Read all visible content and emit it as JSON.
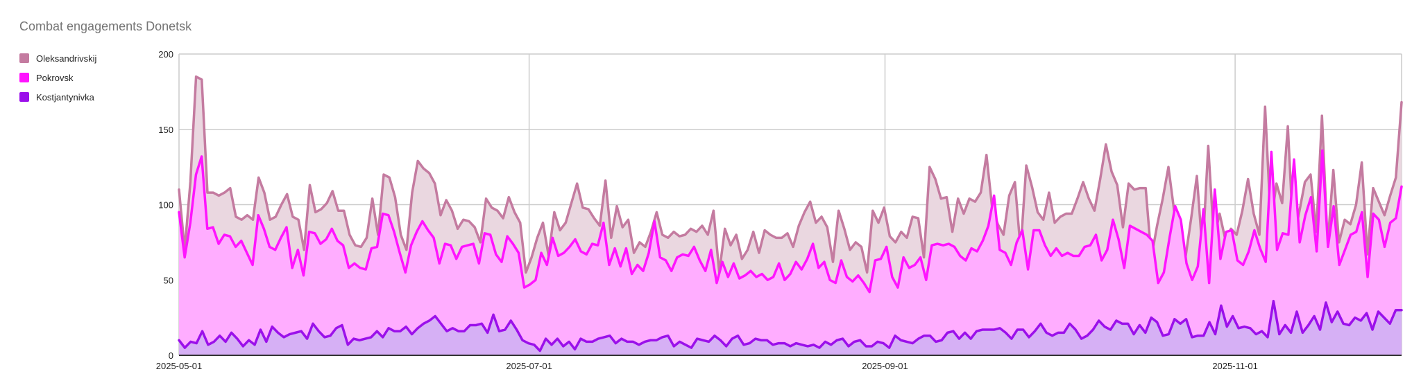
{
  "chart_data": {
    "type": "area",
    "title": "Combat engagements Donetsk",
    "xlabel": "",
    "ylabel": "",
    "x_start": "2025-05-01",
    "x_end": "2025-11-30",
    "ylim": [
      0,
      200
    ],
    "yticks": [
      "0",
      "50",
      "100",
      "150",
      "200"
    ],
    "xticks": [
      {
        "label": "2025-05-01",
        "date": "2025-05-01"
      },
      {
        "label": "2025-07-01",
        "date": "2025-07-01"
      },
      {
        "label": "2025-09-01",
        "date": "2025-09-01"
      },
      {
        "label": "2025-11-01",
        "date": "2025-11-01"
      }
    ],
    "grid": true,
    "legend_position": "left",
    "stacked": false,
    "series": [
      {
        "name": "Oleksandrivskij",
        "color": "#c47ba0",
        "fill": "#ead7e0",
        "values": [
          110,
          70,
          115,
          185,
          183,
          108,
          108,
          106,
          108,
          111,
          92,
          90,
          93,
          90,
          118,
          108,
          90,
          92,
          100,
          107,
          92,
          90,
          70,
          113,
          95,
          97,
          101,
          109,
          96,
          96,
          80,
          73,
          72,
          78,
          104,
          80,
          120,
          118,
          105,
          80,
          70,
          108,
          129,
          124,
          121,
          114,
          93,
          103,
          96,
          84,
          90,
          89,
          85,
          75,
          104,
          98,
          96,
          91,
          105,
          95,
          88,
          55,
          65,
          78,
          88,
          66,
          95,
          83,
          88,
          101,
          114,
          98,
          97,
          91,
          86,
          116,
          78,
          99,
          85,
          90,
          68,
          75,
          72,
          82,
          95,
          80,
          78,
          82,
          79,
          80,
          84,
          82,
          86,
          80,
          96,
          55,
          84,
          73,
          80,
          64,
          70,
          82,
          68,
          83,
          80,
          78,
          78,
          81,
          72,
          86,
          95,
          102,
          88,
          92,
          85,
          62,
          96,
          84,
          70,
          75,
          72,
          55,
          96,
          88,
          98,
          79,
          75,
          82,
          78,
          92,
          91,
          65,
          125,
          117,
          104,
          105,
          82,
          104,
          94,
          104,
          102,
          108,
          133,
          98,
          87,
          80,
          106,
          115,
          70,
          126,
          112,
          95,
          90,
          108,
          88,
          92,
          94,
          94,
          104,
          115,
          104,
          96,
          117,
          140,
          122,
          113,
          85,
          114,
          110,
          111,
          111,
          65,
          86,
          104,
          125,
          96,
          81,
          65,
          91,
          119,
          68,
          139,
          77,
          94,
          77,
          84,
          80,
          96,
          117,
          94,
          80,
          165,
          87,
          114,
          101,
          152,
          76,
          95,
          115,
          120,
          82,
          159,
          74,
          123,
          75,
          90,
          87,
          100,
          128,
          67,
          111,
          102,
          93,
          106,
          118,
          168
        ]
      },
      {
        "name": "Pokrovsk",
        "color": "#ff14ff",
        "fill": "#ffadff",
        "values": [
          95,
          65,
          88,
          120,
          132,
          84,
          85,
          74,
          80,
          79,
          72,
          76,
          68,
          60,
          93,
          84,
          72,
          70,
          78,
          85,
          58,
          70,
          53,
          82,
          81,
          74,
          77,
          84,
          76,
          73,
          58,
          61,
          58,
          57,
          71,
          72,
          94,
          93,
          82,
          68,
          55,
          73,
          82,
          89,
          83,
          78,
          61,
          74,
          73,
          64,
          72,
          73,
          74,
          61,
          81,
          80,
          67,
          62,
          79,
          74,
          68,
          45,
          47,
          50,
          68,
          60,
          78,
          66,
          68,
          72,
          77,
          69,
          67,
          74,
          73,
          88,
          60,
          71,
          59,
          71,
          54,
          60,
          56,
          68,
          89,
          65,
          63,
          56,
          65,
          67,
          66,
          72,
          63,
          56,
          70,
          48,
          62,
          52,
          61,
          51,
          53,
          56,
          52,
          54,
          50,
          52,
          61,
          50,
          54,
          62,
          57,
          64,
          74,
          58,
          62,
          50,
          48,
          63,
          52,
          49,
          53,
          48,
          42,
          63,
          64,
          72,
          52,
          45,
          65,
          58,
          60,
          65,
          50,
          73,
          74,
          73,
          74,
          72,
          66,
          63,
          71,
          69,
          76,
          86,
          106,
          70,
          68,
          60,
          75,
          83,
          57,
          83,
          83,
          73,
          66,
          71,
          66,
          68,
          66,
          66,
          72,
          73,
          80,
          63,
          70,
          90,
          77,
          58,
          86,
          84,
          82,
          80,
          76,
          48,
          55,
          78,
          99,
          90,
          61,
          50,
          59,
          97,
          48,
          110,
          64,
          82,
          83,
          63,
          60,
          69,
          83,
          71,
          62,
          135,
          70,
          81,
          80,
          130,
          75,
          93,
          105,
          69,
          136,
          72,
          99,
          60,
          70,
          80,
          82,
          95,
          52,
          94,
          90,
          72,
          88,
          91,
          112
        ]
      },
      {
        "name": "Kostjantynivka",
        "color": "#9b10ea",
        "fill": "#d6b0f5",
        "values": [
          10,
          5,
          9,
          8,
          16,
          7,
          9,
          13,
          9,
          15,
          11,
          6,
          10,
          7,
          17,
          9,
          19,
          15,
          12,
          14,
          15,
          16,
          11,
          21,
          16,
          12,
          13,
          18,
          20,
          7,
          11,
          10,
          11,
          12,
          16,
          12,
          18,
          16,
          16,
          19,
          14,
          18,
          21,
          23,
          26,
          21,
          16,
          18,
          16,
          16,
          20,
          20,
          21,
          15,
          27,
          16,
          17,
          23,
          17,
          10,
          8,
          7,
          3,
          11,
          7,
          11,
          6,
          9,
          4,
          11,
          9,
          9,
          11,
          12,
          13,
          8,
          11,
          9,
          9,
          7,
          9,
          10,
          10,
          12,
          13,
          6,
          9,
          7,
          5,
          11,
          10,
          9,
          13,
          10,
          6,
          11,
          13,
          7,
          8,
          11,
          10,
          10,
          7,
          8,
          8,
          6,
          8,
          7,
          6,
          7,
          5,
          9,
          7,
          10,
          11,
          6,
          9,
          10,
          6,
          6,
          9,
          8,
          5,
          13,
          10,
          9,
          8,
          11,
          13,
          13,
          9,
          10,
          15,
          16,
          11,
          15,
          11,
          16,
          17,
          17,
          17,
          18,
          15,
          11,
          17,
          17,
          12,
          16,
          21,
          15,
          13,
          15,
          15,
          21,
          17,
          11,
          13,
          17,
          23,
          19,
          17,
          23,
          21,
          21,
          14,
          20,
          15,
          25,
          22,
          13,
          14,
          24,
          21,
          24,
          12,
          13,
          13,
          22,
          14,
          33,
          19,
          26,
          18,
          19,
          18,
          14,
          16,
          12,
          36,
          14,
          20,
          15,
          29,
          15,
          20,
          26,
          17,
          35,
          22,
          29,
          21,
          20,
          25,
          23,
          28,
          17,
          29,
          25,
          21,
          30,
          30
        ]
      }
    ]
  }
}
